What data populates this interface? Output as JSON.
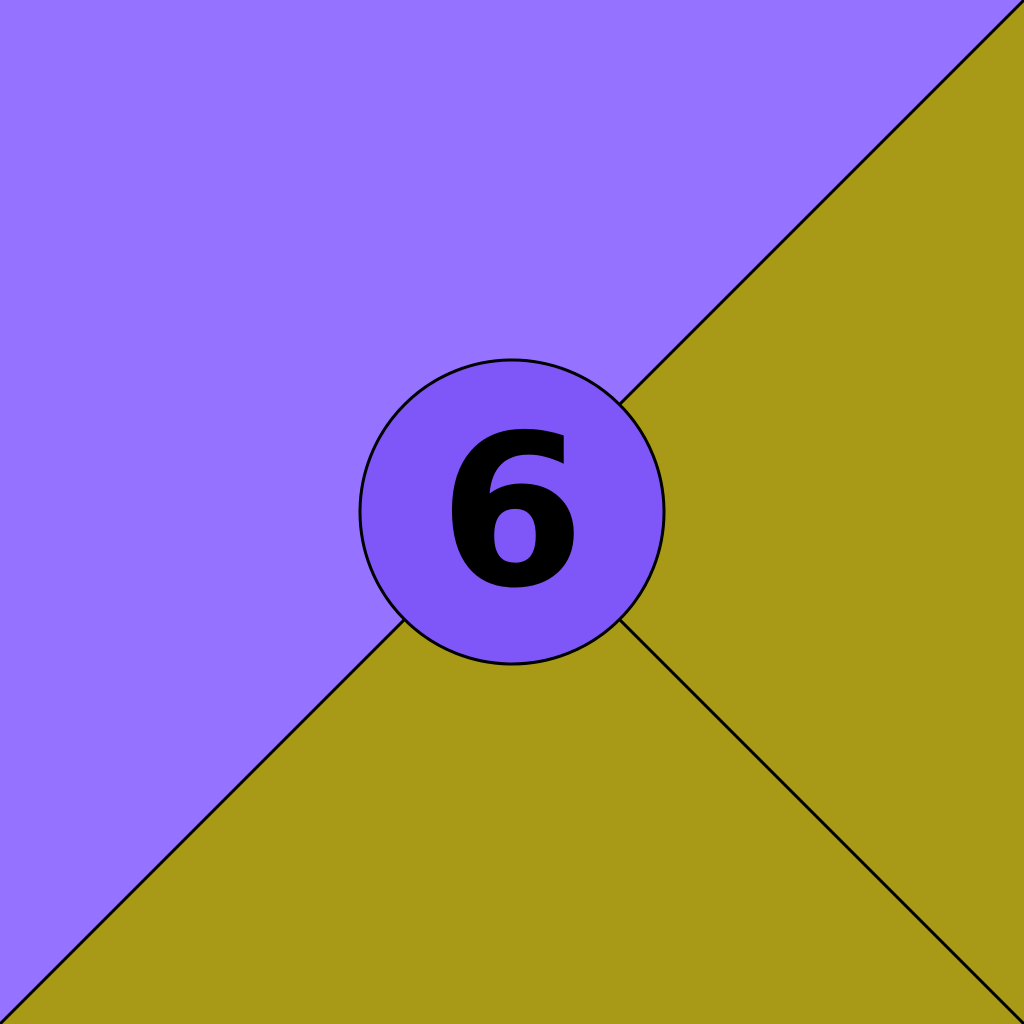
{
  "colors": {
    "upper_left_region": "#9572FF",
    "lower_right_region": "#A89A16",
    "center_circle_fill": "#7F56F7",
    "outline": "#000000",
    "number_text": "#000000"
  },
  "center_badge": {
    "number": "6"
  }
}
